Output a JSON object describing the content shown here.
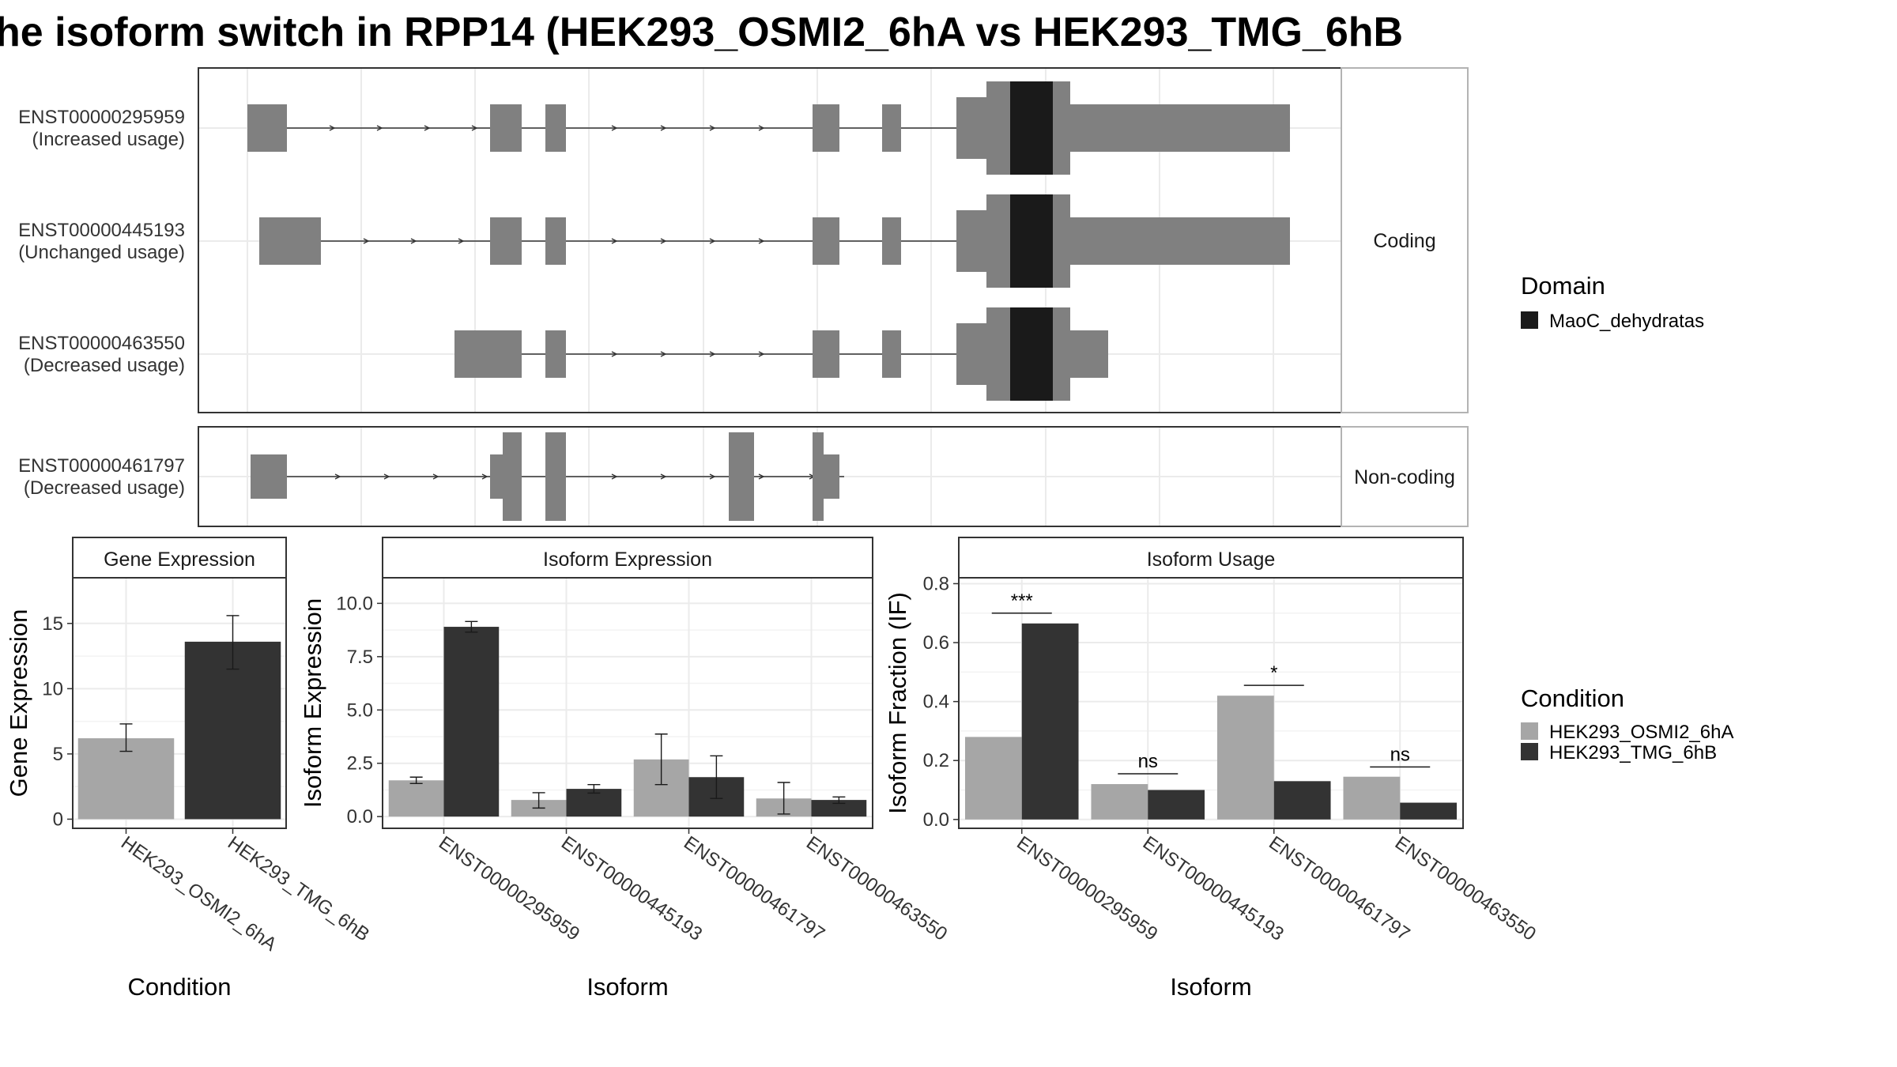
{
  "title": "he isoform switch in RPP14 (HEK293_OSMI2_6hA vs HEK293_TMG_6hB",
  "colors": {
    "exon": "#808080",
    "domain": "#1a1a1a",
    "cond_a": "#a6a6a6",
    "cond_b": "#333333",
    "grid": "#ebebeb",
    "strip_bg": "#ffffff",
    "border": "#333333"
  },
  "structure": {
    "facets": [
      {
        "label": "Coding",
        "isoforms": [
          {
            "id": "ENST00000295959",
            "usage": "(Increased usage)"
          },
          {
            "id": "ENST00000445193",
            "usage": "(Unchanged usage)"
          },
          {
            "id": "ENST00000463550",
            "usage": "(Decreased usage)"
          }
        ]
      },
      {
        "label": "Non-coding",
        "isoforms": [
          {
            "id": "ENST00000461797",
            "usage": "(Decreased usage)"
          }
        ]
      }
    ]
  },
  "legend_domain": {
    "title": "Domain",
    "items": [
      {
        "label": "MaoC_dehydratas",
        "color": "#1a1a1a"
      }
    ]
  },
  "legend_condition": {
    "title": "Condition",
    "items": [
      {
        "label": "HEK293_OSMI2_6hA",
        "color": "#a6a6a6"
      },
      {
        "label": "HEK293_TMG_6hB",
        "color": "#333333"
      }
    ]
  },
  "chart_data": [
    {
      "type": "bar",
      "title": "Gene Expression",
      "xlabel": "Condition",
      "ylabel": "Gene Expression",
      "categories": [
        "HEK293_OSMI2_6hA",
        "HEK293_TMG_6hB"
      ],
      "values": [
        6.2,
        13.6
      ],
      "error": [
        [
          5.2,
          7.3
        ],
        [
          11.5,
          15.6
        ]
      ],
      "ylim": [
        -0.7,
        18.5
      ],
      "yticks": [
        0,
        5,
        10,
        15
      ],
      "ytick_labels": [
        "0",
        "5",
        "10",
        "15"
      ],
      "grid": true
    },
    {
      "type": "bar",
      "title": "Isoform Expression",
      "xlabel": "Isoform",
      "ylabel": "Isoform Expression",
      "categories": [
        "ENST00000295959",
        "ENST00000445193",
        "ENST00000461797",
        "ENST00000463550"
      ],
      "series": [
        {
          "name": "HEK293_OSMI2_6hA",
          "values": [
            1.7,
            0.78,
            2.68,
            0.85
          ],
          "error": [
            [
              1.55,
              1.85
            ],
            [
              0.4,
              1.12
            ],
            [
              1.5,
              3.87
            ],
            [
              0.12,
              1.6
            ]
          ]
        },
        {
          "name": "HEK293_TMG_6hB",
          "values": [
            8.9,
            1.3,
            1.85,
            0.78
          ],
          "error": [
            [
              8.65,
              9.15
            ],
            [
              1.1,
              1.5
            ],
            [
              0.85,
              2.85
            ],
            [
              0.62,
              0.92
            ]
          ]
        }
      ],
      "ylim": [
        -0.55,
        11.2
      ],
      "yticks": [
        0,
        2.5,
        5,
        7.5,
        10
      ],
      "ytick_labels": [
        "0.0",
        "2.5",
        "5.0",
        "7.5",
        "10.0"
      ],
      "grid": true
    },
    {
      "type": "bar",
      "title": "Isoform Usage",
      "xlabel": "Isoform",
      "ylabel": "Isoform Fraction (IF)",
      "categories": [
        "ENST00000295959",
        "ENST00000445193",
        "ENST00000461797",
        "ENST00000463550"
      ],
      "series": [
        {
          "name": "HEK293_OSMI2_6hA",
          "values": [
            0.28,
            0.12,
            0.42,
            0.145
          ]
        },
        {
          "name": "HEK293_TMG_6hB",
          "values": [
            0.665,
            0.1,
            0.13,
            0.057
          ]
        }
      ],
      "significance": [
        {
          "label": "***",
          "y": 0.7
        },
        {
          "label": "ns",
          "y": 0.155
        },
        {
          "label": "*",
          "y": 0.455
        },
        {
          "label": "ns",
          "y": 0.178
        }
      ],
      "ylim": [
        -0.03,
        0.82
      ],
      "yticks": [
        0,
        0.2,
        0.4,
        0.6,
        0.8
      ],
      "ytick_labels": [
        "0.0",
        "0.2",
        "0.4",
        "0.6",
        "0.8"
      ],
      "grid": true
    }
  ]
}
